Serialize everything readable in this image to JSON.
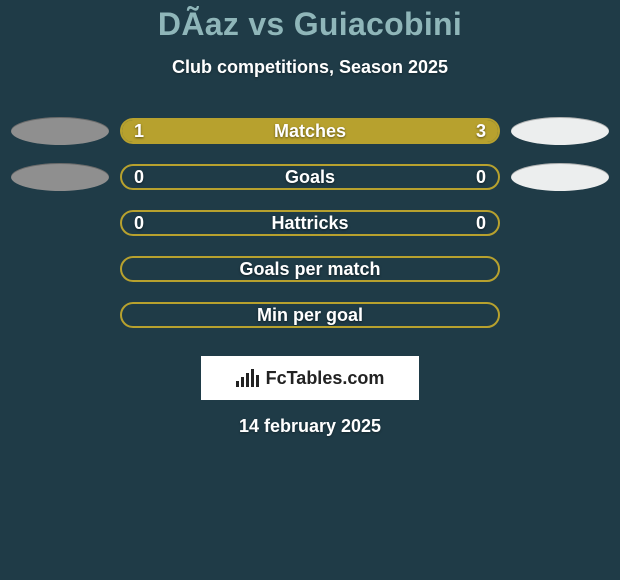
{
  "background_color": "#1f3b47",
  "title": {
    "text": "DÃ­az vs Guiacobini",
    "color": "#8fb6b9",
    "fontsize": 32
  },
  "subtitle": {
    "text": "Club competitions, Season 2025",
    "color": "#ffffff",
    "fontsize": 18
  },
  "left_marker_color": "#8f8f8f",
  "right_marker_color": "#eceeee",
  "bar_style": {
    "border_color": "#b7a12e",
    "track_color": "#1f3b47",
    "fill_color": "#b7a12e",
    "text_color": "#ffffff",
    "height": 26,
    "radius": 13,
    "label_fontsize": 18
  },
  "rows": [
    {
      "label": "Matches",
      "left": "1",
      "right": "3",
      "left_pct": 20,
      "right_pct": 80,
      "show_markers": true,
      "show_values": true
    },
    {
      "label": "Goals",
      "left": "0",
      "right": "0",
      "left_pct": 0,
      "right_pct": 0,
      "show_markers": true,
      "show_values": true
    },
    {
      "label": "Hattricks",
      "left": "0",
      "right": "0",
      "left_pct": 0,
      "right_pct": 0,
      "show_markers": false,
      "show_values": true
    },
    {
      "label": "Goals per match",
      "left": "",
      "right": "",
      "left_pct": 0,
      "right_pct": 0,
      "show_markers": false,
      "show_values": false
    },
    {
      "label": "Min per goal",
      "left": "",
      "right": "",
      "left_pct": 0,
      "right_pct": 0,
      "show_markers": false,
      "show_values": false
    }
  ],
  "logo_text": "FcTables.com",
  "date_text": "14 february 2025",
  "date_color": "#ffffff"
}
